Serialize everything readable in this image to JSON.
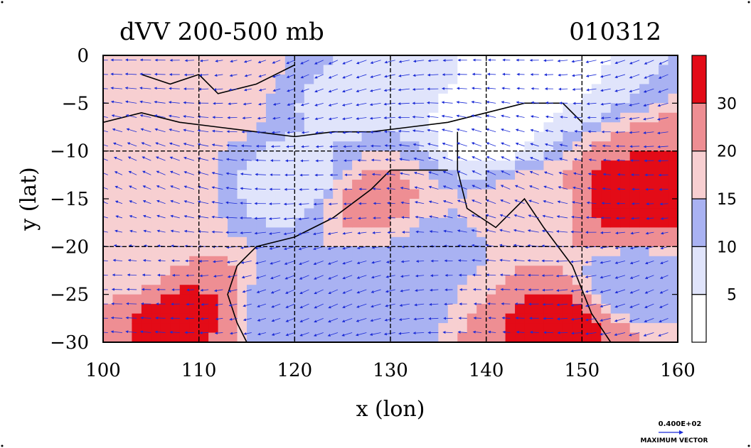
{
  "chart_data": {
    "type": "heatmap",
    "title": "dVV 200-500 mb",
    "date_label": "010312",
    "xlabel": "x (lon)",
    "ylabel": "y (lat)",
    "xlim": [
      100,
      160
    ],
    "ylim": [
      -30,
      0
    ],
    "x_ticks": [
      100,
      110,
      120,
      130,
      140,
      150,
      160
    ],
    "y_ticks": [
      0,
      -5,
      -10,
      -15,
      -20,
      -25,
      -30
    ],
    "x_tick_labels": [
      "100",
      "110",
      "120",
      "130",
      "140",
      "150",
      "160"
    ],
    "y_tick_labels": [
      "0",
      "−5",
      "−10",
      "−15",
      "−20",
      "−25",
      "−30"
    ],
    "grid": true,
    "grid_lines_x": [
      110,
      120,
      130,
      140,
      150
    ],
    "grid_lines_y": [
      -10,
      -20
    ],
    "colorbar": {
      "levels": [
        0,
        5,
        10,
        15,
        20,
        30,
        40
      ],
      "labels": [
        "5",
        "10",
        "15",
        "20",
        "30"
      ],
      "colors": [
        "#ffffff",
        "#e0e4fb",
        "#a9b2f2",
        "#f7cfd1",
        "#ee8e93",
        "#e30b17"
      ]
    },
    "vector_key": {
      "value_label": "0.400E+02",
      "caption": "MAXIMUM VECTOR"
    },
    "regions": [
      {
        "lon": 108,
        "lat": -27,
        "value": 32
      },
      {
        "lon": 148,
        "lat": -28,
        "value": 32
      },
      {
        "lon": 155,
        "lat": -15,
        "value": 33
      },
      {
        "lon": 128,
        "lat": -15,
        "value": 22
      },
      {
        "lon": 104,
        "lat": -1,
        "value": 18
      },
      {
        "lon": 113,
        "lat": -1,
        "value": 17
      },
      {
        "lon": 106,
        "lat": -13,
        "value": 18
      },
      {
        "lon": 103,
        "lat": -22,
        "value": 17
      },
      {
        "lon": 135,
        "lat": -20,
        "value": 14
      },
      {
        "lon": 112,
        "lat": -6,
        "value": 16
      },
      {
        "lon": 145,
        "lat": -16,
        "value": 18
      },
      {
        "lon": 128,
        "lat": -25,
        "value": 11
      },
      {
        "lon": 140,
        "lat": -8,
        "value": 3
      },
      {
        "lon": 145,
        "lat": -2,
        "value": 4
      },
      {
        "lon": 120,
        "lat": -13,
        "value": 6
      },
      {
        "lon": 125,
        "lat": -5,
        "value": 9
      },
      {
        "lon": 120,
        "lat": -27,
        "value": 11
      },
      {
        "lon": 155,
        "lat": -24,
        "value": 11
      }
    ]
  }
}
